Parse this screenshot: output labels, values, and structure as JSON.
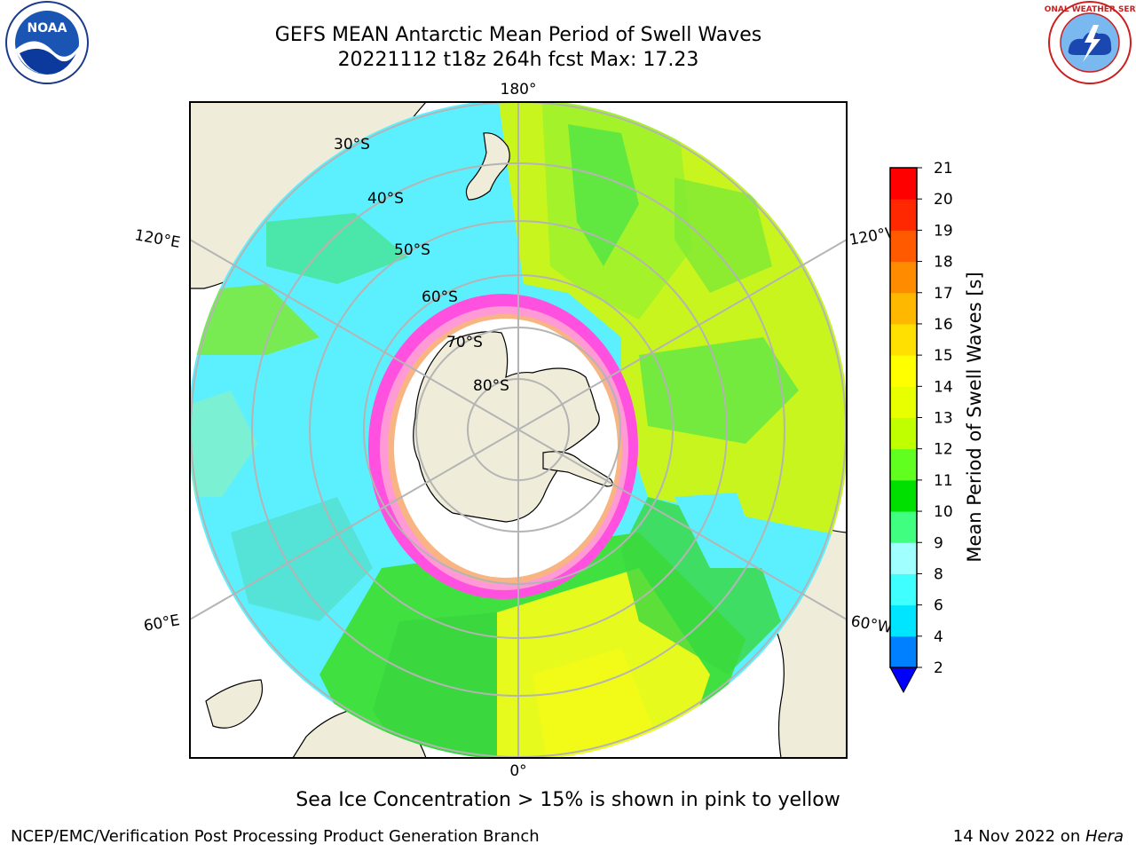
{
  "header": {
    "title_line1": "GEFS MEAN Antarctic Mean Period of Swell Waves",
    "title_line2": "20221112 t18z 264h fcst   Max: 17.23"
  },
  "logos": {
    "left": "noaa-logo",
    "left_text": "NOAA",
    "right": "national-weather-service-logo",
    "right_text": "NATIONAL WEATHER SERVICE"
  },
  "map": {
    "projection": "south-polar-stereographic",
    "meridian_labels": {
      "top": "180°",
      "bottom": "0°",
      "upper_left": "120°E",
      "lower_left": "60°E",
      "upper_right": "120°W",
      "lower_right": "60°W"
    },
    "latitude_labels": [
      "30°S",
      "40°S",
      "50°S",
      "60°S",
      "70°S",
      "80°S"
    ]
  },
  "colorbar": {
    "label": "Mean Period of Swell Waves [s]",
    "ticks": [
      "2",
      "4",
      "6",
      "8",
      "9",
      "10",
      "11",
      "12",
      "13",
      "14",
      "15",
      "16",
      "17",
      "18",
      "19",
      "20",
      "21"
    ],
    "colors": [
      "#0040ff",
      "#0080ff",
      "#00e5ff",
      "#40ffff",
      "#a0ffff",
      "#40ff80",
      "#00e000",
      "#60ff20",
      "#c0ff00",
      "#e8ff00",
      "#ffff00",
      "#ffe000",
      "#ffb800",
      "#ff8c00",
      "#ff5a00",
      "#ff2800",
      "#ff0000"
    ],
    "extend_low_color": "#0000ff"
  },
  "caption": "Sea Ice Concentration > 15% is shown in pink to yellow",
  "footer": {
    "left": "NCEP/EMC/Verification Post Processing Product Generation Branch",
    "right_prefix": "14 Nov 2022 on ",
    "right_host": "Hera"
  }
}
